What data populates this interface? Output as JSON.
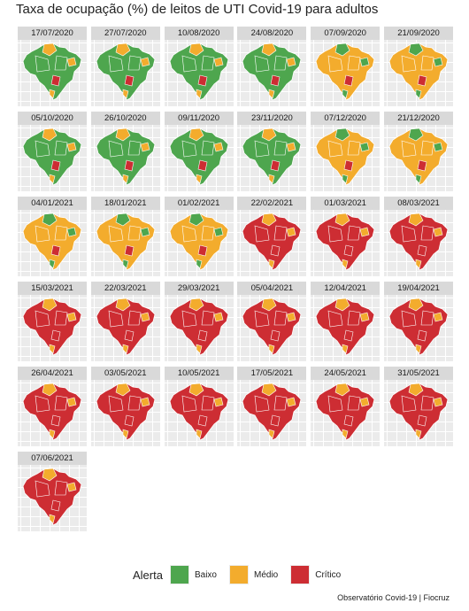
{
  "title": "Taxa de ocupação (%) de leitos de UTI Covid-19 para adultos",
  "caption": "Observatório Covid-19 | Fiocruz",
  "legend": {
    "title": "Alerta",
    "items": [
      {
        "label": "Baixo",
        "color": "#4ea64e"
      },
      {
        "label": "Médio",
        "color": "#f3ac2d"
      },
      {
        "label": "Crítico",
        "color": "#cd2d33"
      }
    ]
  },
  "panels": [
    {
      "date": "17/07/2020",
      "dominant": "low"
    },
    {
      "date": "27/07/2020",
      "dominant": "low"
    },
    {
      "date": "10/08/2020",
      "dominant": "low"
    },
    {
      "date": "24/08/2020",
      "dominant": "low"
    },
    {
      "date": "07/09/2020",
      "dominant": "mid"
    },
    {
      "date": "21/09/2020",
      "dominant": "mid"
    },
    {
      "date": "05/10/2020",
      "dominant": "low"
    },
    {
      "date": "26/10/2020",
      "dominant": "low"
    },
    {
      "date": "09/11/2020",
      "dominant": "low"
    },
    {
      "date": "23/11/2020",
      "dominant": "low"
    },
    {
      "date": "07/12/2020",
      "dominant": "mid"
    },
    {
      "date": "21/12/2020",
      "dominant": "mid"
    },
    {
      "date": "04/01/2021",
      "dominant": "mid"
    },
    {
      "date": "18/01/2021",
      "dominant": "mid"
    },
    {
      "date": "01/02/2021",
      "dominant": "mid"
    },
    {
      "date": "22/02/2021",
      "dominant": "crit"
    },
    {
      "date": "01/03/2021",
      "dominant": "crit"
    },
    {
      "date": "08/03/2021",
      "dominant": "crit"
    },
    {
      "date": "15/03/2021",
      "dominant": "crit"
    },
    {
      "date": "22/03/2021",
      "dominant": "crit"
    },
    {
      "date": "29/03/2021",
      "dominant": "crit"
    },
    {
      "date": "05/04/2021",
      "dominant": "crit"
    },
    {
      "date": "12/04/2021",
      "dominant": "crit"
    },
    {
      "date": "19/04/2021",
      "dominant": "crit"
    },
    {
      "date": "26/04/2021",
      "dominant": "crit"
    },
    {
      "date": "03/05/2021",
      "dominant": "crit"
    },
    {
      "date": "10/05/2021",
      "dominant": "crit"
    },
    {
      "date": "17/05/2021",
      "dominant": "crit"
    },
    {
      "date": "24/05/2021",
      "dominant": "crit"
    },
    {
      "date": "31/05/2021",
      "dominant": "crit"
    },
    {
      "date": "07/06/2021",
      "dominant": "crit"
    }
  ]
}
